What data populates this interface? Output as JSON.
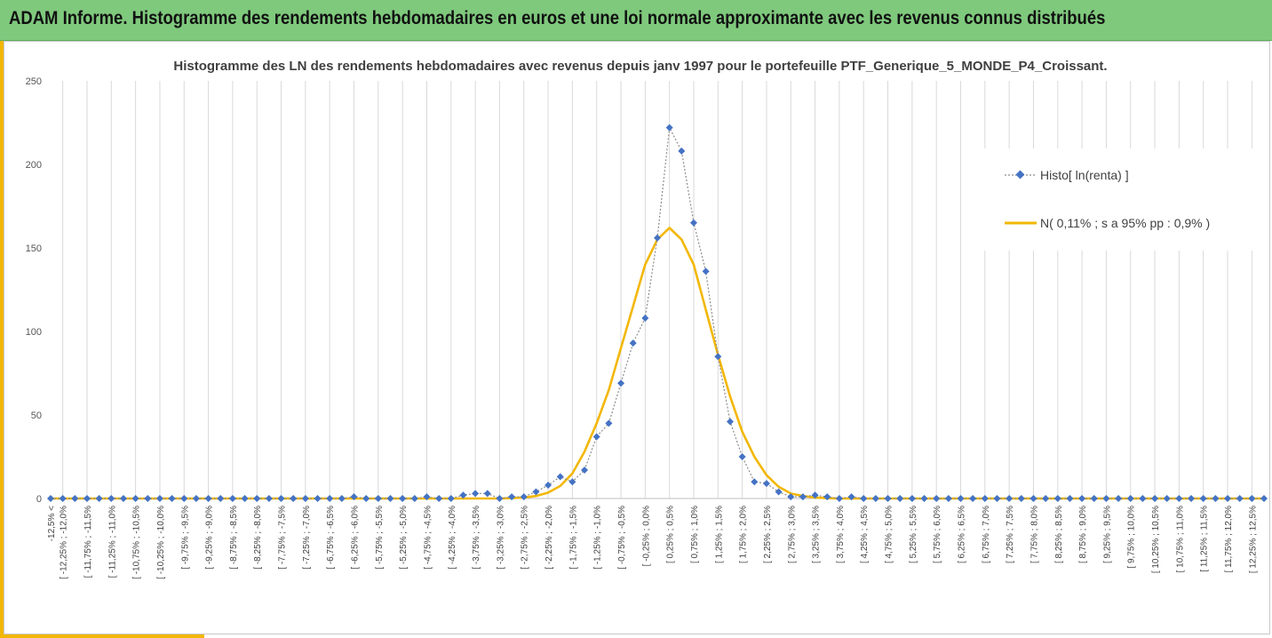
{
  "header": {
    "title": "ADAM Informe. Histogramme des rendements hebdomadaires en euros et une loi normale approximante avec les revenus connus distribués"
  },
  "colors": {
    "header_bg": "#7fc97d",
    "accent": "#f2b705",
    "histo_series": "#4472c4",
    "normal_series": "#f2b705"
  },
  "chart_data": {
    "type": "line",
    "title": "Histogramme des LN des rendements hebdomadaires avec revenus depuis janv 1997 pour le portefeuille PTF_Generique_5_MONDE_P4_Croissant.",
    "xlabel": "",
    "ylabel": "",
    "ylim": [
      0,
      250
    ],
    "yticks": [
      0,
      50,
      100,
      150,
      200,
      250
    ],
    "grid": "vertical",
    "legend_position": "right",
    "categories": [
      "-12,5% <",
      "[ -12,25% ; -12,0% ",
      "[ -11,75% ; -11,5% ",
      "[ -11,25% ; -11,0% ",
      "[ -10,75% ; -10,5% ",
      "[ -10,25% ; -10,0% ",
      "[ -9,75% ; -9,5% ",
      "[ -9,25% ; -9,0% ",
      "[ -8,75% ; -8,5% ",
      "[ -8,25% ; -8,0% ",
      "[ -7,75% ; -7,5% ",
      "[ -7,25% ; -7,0% ",
      "[ -6,75% ; -6,5% ",
      "[ -6,25% ; -6,0% ",
      "[ -5,75% ; -5,5% ",
      "[ -5,25% ; -5,0% ",
      "[ -4,75% ; -4,5% ",
      "[ -4,25% ; -4,0% ",
      "[ -3,75% ; -3,5% ",
      "[ -3,25% ; -3,0% ",
      "[ -2,75% ; -2,5% ",
      "[ -2,25% ; -2,0% ",
      "[ -1,75% ; -1,5% ",
      "[ -1,25% ; -1,0% ",
      "[ -0,75% ; -0,5% ",
      "[ -0,25% ; 0,0% ",
      "[ 0,25% ; 0,5% ",
      "[ 0,75% ; 1,0% ",
      "[ 1,25% ; 1,5% ",
      "[ 1,75% ; 2,0% ",
      "[ 2,25% ; 2,5% ",
      "[ 2,75% ; 3,0% ",
      "[ 3,25% ; 3,5% ",
      "[ 3,75% ; 4,0% ",
      "[ 4,25% ; 4,5% ",
      "[ 4,75% ; 5,0% ",
      "[ 5,25% ; 5,5% ",
      "[ 5,75% ; 6,0% ",
      "[ 6,25% ; 6,5% ",
      "[ 6,75% ; 7,0% ",
      "[ 7,25% ; 7,5% ",
      "[ 7,75% ; 8,0% ",
      "[ 8,25% ; 8,5% ",
      "[ 8,75% ; 9,0% ",
      "[ 9,25% ; 9,5% ",
      "[ 9,75% ; 10,0% ",
      "[ 10,25% ; 10,5% ",
      "[ 10,75% ; 11,0% ",
      "[ 11,25% ; 11,5% ",
      "[ 11,75% ; 12,0% ",
      "[ 12,25% ; 12,5% "
    ],
    "x": [
      -12.5,
      -12.25,
      -12.0,
      -11.75,
      -11.5,
      -11.25,
      -11.0,
      -10.75,
      -10.5,
      -10.25,
      -10.0,
      -9.75,
      -9.5,
      -9.25,
      -9.0,
      -8.75,
      -8.5,
      -8.25,
      -8.0,
      -7.75,
      -7.5,
      -7.25,
      -7.0,
      -6.75,
      -6.5,
      -6.25,
      -6.0,
      -5.75,
      -5.5,
      -5.25,
      -5.0,
      -4.75,
      -4.5,
      -4.25,
      -4.0,
      -3.75,
      -3.5,
      -3.25,
      -3.0,
      -2.75,
      -2.5,
      -2.25,
      -2.0,
      -1.75,
      -1.5,
      -1.25,
      -1.0,
      -0.75,
      -0.5,
      -0.25,
      0.0,
      0.25,
      0.5,
      0.75,
      1.0,
      1.25,
      1.5,
      1.75,
      2.0,
      2.25,
      2.5,
      2.75,
      3.0,
      3.25,
      3.5,
      3.75,
      4.0,
      4.25,
      4.5,
      4.75,
      5.0,
      5.25,
      5.5,
      5.75,
      6.0,
      6.25,
      6.5,
      6.75,
      7.0,
      7.25,
      7.5,
      7.75,
      8.0,
      8.25,
      8.5,
      8.75,
      9.0,
      9.25,
      9.5,
      9.75,
      10.0,
      10.25,
      10.5,
      10.75,
      11.0,
      11.25,
      11.5,
      11.75,
      12.0,
      12.25,
      12.5
    ],
    "series": [
      {
        "name": "Histo[ ln(renta) ]",
        "style": "dotted-line-diamond-markers",
        "values": [
          0,
          0,
          0,
          0,
          0,
          0,
          0,
          0,
          0,
          0,
          0,
          0,
          0,
          0,
          0,
          0,
          0,
          0,
          0,
          0,
          0,
          0,
          0,
          0,
          0,
          1,
          0,
          0,
          0,
          0,
          0,
          1,
          0,
          0,
          2,
          3,
          3,
          0,
          1,
          1,
          4,
          8,
          13,
          10,
          17,
          37,
          45,
          69,
          93,
          108,
          156,
          222,
          208,
          165,
          136,
          85,
          46,
          25,
          10,
          9,
          4,
          1,
          1,
          2,
          1,
          0,
          1,
          0,
          0,
          0,
          0,
          0,
          0,
          0,
          0,
          0,
          0,
          0,
          0,
          0,
          0,
          0,
          0,
          0,
          0,
          0,
          0,
          0,
          0,
          0,
          0,
          0,
          0,
          0,
          0,
          0,
          0,
          0,
          0,
          0,
          0
        ]
      },
      {
        "name": "N( 0,11% ; s a 95% pp : 0,9% )",
        "style": "solid-line",
        "values": [
          0,
          0,
          0,
          0,
          0,
          0,
          0,
          0,
          0,
          0,
          0,
          0,
          0,
          0,
          0,
          0,
          0,
          0,
          0,
          0,
          0,
          0,
          0,
          0,
          0,
          0,
          0,
          0,
          0,
          0,
          0,
          0,
          0,
          0,
          0,
          0,
          0,
          0,
          0.2,
          0.6,
          1.5,
          3.5,
          7.5,
          15,
          28,
          45,
          65,
          90,
          115,
          140,
          155,
          162,
          155,
          140,
          113,
          86,
          61,
          40,
          25,
          14,
          7,
          3,
          1.5,
          0.6,
          0.2,
          0,
          0,
          0,
          0,
          0,
          0,
          0,
          0,
          0,
          0,
          0,
          0,
          0,
          0,
          0,
          0,
          0,
          0,
          0,
          0,
          0,
          0,
          0,
          0,
          0,
          0,
          0,
          0,
          0,
          0,
          0,
          0,
          0,
          0,
          0,
          0
        ]
      }
    ]
  }
}
